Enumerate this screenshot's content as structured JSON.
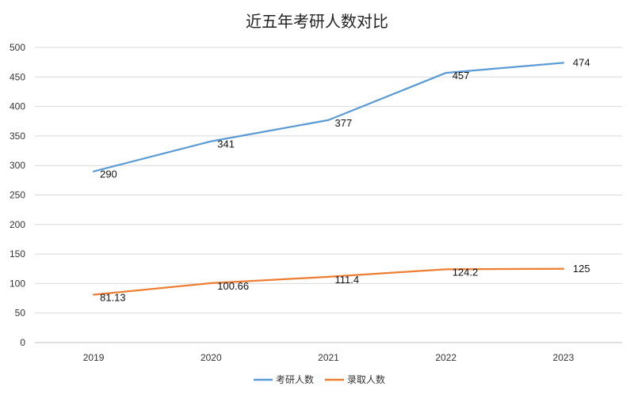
{
  "chart_data": {
    "type": "line",
    "title": "近五年考研人数对比",
    "categories": [
      "2019",
      "2020",
      "2021",
      "2022",
      "2023"
    ],
    "ylim": [
      0,
      500
    ],
    "yticks": [
      0,
      50,
      100,
      150,
      200,
      250,
      300,
      350,
      400,
      450,
      500
    ],
    "grid": true,
    "legend_position": "bottom",
    "series": [
      {
        "name": "考研人数",
        "color": "#5B9BD5",
        "values": [
          290,
          341,
          377,
          457,
          474
        ],
        "labels": [
          "290",
          "341",
          "377",
          "457",
          "474"
        ]
      },
      {
        "name": "录取人数",
        "color": "#ED7D31",
        "values": [
          81.13,
          100.66,
          111.4,
          124.2,
          125
        ],
        "labels": [
          "81.13",
          "100.66",
          "111.4",
          "124.2",
          "125"
        ]
      }
    ]
  }
}
